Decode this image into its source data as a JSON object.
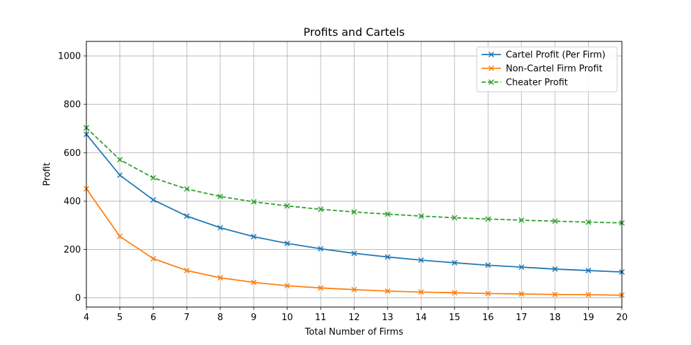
{
  "chart_data": {
    "type": "line",
    "title": "Profits and Cartels",
    "xlabel": "Total Number of Firms",
    "ylabel": "Profit",
    "xlim": [
      4,
      20
    ],
    "ylim": [
      -38,
      1060
    ],
    "xticks": [
      4,
      5,
      6,
      7,
      8,
      9,
      10,
      11,
      12,
      13,
      14,
      15,
      16,
      17,
      18,
      19,
      20
    ],
    "yticks": [
      0,
      200,
      400,
      600,
      800,
      1000
    ],
    "grid": true,
    "legend_position": "top-right",
    "x": [
      4,
      5,
      6,
      7,
      8,
      9,
      10,
      11,
      12,
      13,
      14,
      15,
      16,
      17,
      18,
      19,
      20
    ],
    "series": [
      {
        "name": "Cartel Profit (Per Firm)",
        "color": "#1f77b4",
        "linestyle": "solid",
        "marker": "x",
        "values": [
          676,
          507,
          405,
          338,
          290,
          253,
          225,
          203,
          184,
          169,
          156,
          145,
          135,
          127,
          119,
          113,
          107
        ]
      },
      {
        "name": "Non-Cartel Firm Profit",
        "color": "#ff7f0e",
        "linestyle": "solid",
        "marker": "x",
        "values": [
          451,
          254,
          162,
          113,
          83,
          64,
          50,
          41,
          34,
          28,
          24,
          21,
          18,
          16,
          14,
          13,
          11
        ]
      },
      {
        "name": "Cheater Profit",
        "color": "#2ca02c",
        "linestyle": "dashed",
        "marker": "x",
        "values": [
          703,
          571,
          496,
          450,
          419,
          397,
          380,
          366,
          355,
          346,
          338,
          331,
          326,
          321,
          317,
          313,
          310
        ]
      }
    ]
  }
}
